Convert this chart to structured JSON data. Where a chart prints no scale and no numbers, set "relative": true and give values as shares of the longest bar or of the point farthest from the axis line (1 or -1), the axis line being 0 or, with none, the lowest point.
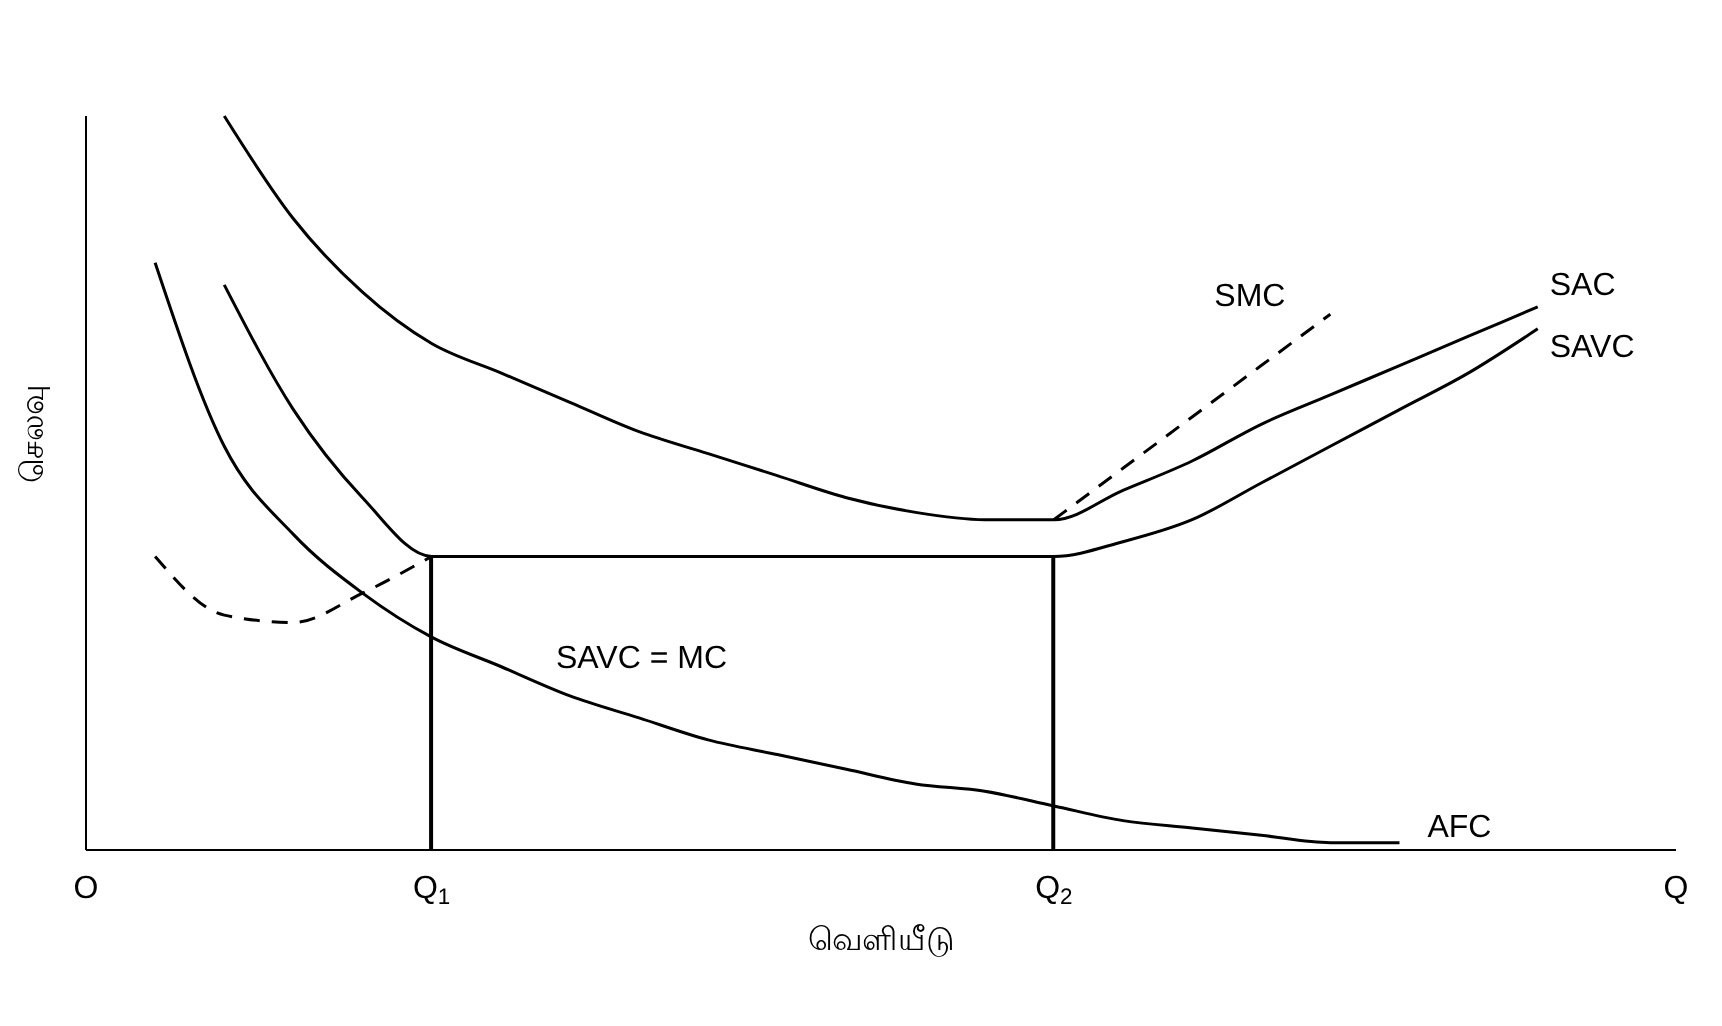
{
  "chart_data": {
    "type": "line",
    "relative": true,
    "xlabel": "வெளியீடு",
    "ylabel": "செலவு",
    "tick_labels": "x",
    "grid": false,
    "legend": false,
    "marker": "none",
    "annotations": [
      "SAVC = MC"
    ],
    "categories": [
      "O",
      null,
      null,
      null,
      null,
      "Q$_{1}$",
      null,
      null,
      null,
      null,
      null,
      null,
      null,
      null,
      "Q$_{2}$",
      null,
      null,
      null,
      null,
      null,
      null,
      null,
      null,
      "Q"
    ],
    "series": [
      {
        "name": "SMC",
        "color": "#000000",
        "line_style": "dashed",
        "values": [
          null,
          0.4,
          0.32,
          0.31,
          0.35,
          0.4,
          null,
          null,
          null,
          null,
          null,
          null,
          null,
          null,
          0.45,
          0.52,
          0.59,
          0.66,
          0.73,
          null,
          null,
          null,
          null,
          null
        ]
      },
      {
        "name": "SAC",
        "color": "#000000",
        "line_style": "solid",
        "values": [
          null,
          null,
          1,
          0.86,
          0.76,
          0.69,
          0.65,
          0.61,
          0.57,
          0.54,
          0.51,
          0.48,
          0.46,
          0.45,
          0.45,
          0.49,
          0.53,
          0.58,
          0.62,
          0.66,
          0.7,
          0.74,
          null,
          null
        ]
      },
      {
        "name": "SAVC",
        "color": "#000000",
        "line_style": "solid",
        "values": [
          null,
          null,
          0.77,
          0.6,
          0.48,
          0.4,
          0.4,
          0.4,
          0.4,
          0.4,
          0.4,
          0.4,
          0.4,
          0.4,
          0.4,
          0.42,
          0.45,
          0.5,
          0.55,
          0.6,
          0.65,
          0.71,
          null,
          null
        ]
      },
      {
        "name": "AFC",
        "color": "#000000",
        "line_style": "solid",
        "values": [
          null,
          0.8,
          0.55,
          0.43,
          0.35,
          0.29,
          0.25,
          0.21,
          0.18,
          0.15,
          0.13,
          0.11,
          0.09,
          0.08,
          0.06,
          0.04,
          0.03,
          0.02,
          0.01,
          0.01,
          null,
          null,
          null,
          null
        ]
      },
      {
        "type": "bar",
        "color": "#000000",
        "values": [
          null,
          null,
          null,
          null,
          null,
          0.4,
          null,
          null,
          null,
          null,
          null,
          null,
          null,
          null,
          0.4,
          null,
          null,
          null,
          null,
          null,
          null,
          null,
          null,
          null
        ]
      }
    ]
  }
}
